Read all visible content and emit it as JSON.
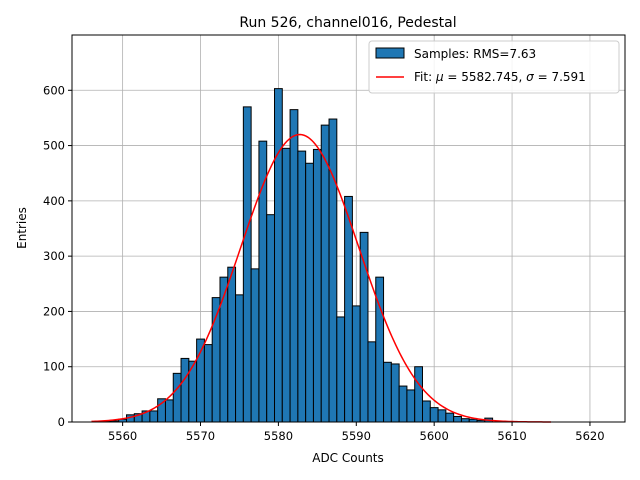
{
  "chart_data": {
    "type": "bar",
    "title": "Run 526, channel016, Pedestal",
    "xlabel": "ADC Counts",
    "ylabel": "Entries",
    "xlim": [
      5553.5,
      5624.5
    ],
    "ylim": [
      0,
      700
    ],
    "xticks": [
      5560,
      5570,
      5580,
      5590,
      5600,
      5610,
      5620
    ],
    "yticks": [
      0,
      100,
      200,
      300,
      400,
      500,
      600
    ],
    "grid": true,
    "legend_placement": "top-right",
    "bin_width": 1,
    "histogram": {
      "name": "Samples: RMS=7.63",
      "color": "#1f77b4",
      "bin_centers": [
        5558,
        5559,
        5560,
        5561,
        5562,
        5563,
        5564,
        5565,
        5566,
        5567,
        5568,
        5569,
        5570,
        5571,
        5572,
        5573,
        5574,
        5575,
        5576,
        5577,
        5578,
        5579,
        5580,
        5581,
        5582,
        5583,
        5584,
        5585,
        5586,
        5587,
        5588,
        5589,
        5590,
        5591,
        5592,
        5593,
        5594,
        5595,
        5596,
        5597,
        5598,
        5599,
        5600,
        5601,
        5602,
        5603,
        5604,
        5605,
        5606,
        5607
      ],
      "counts": [
        1,
        2,
        5,
        13,
        15,
        20,
        20,
        42,
        40,
        88,
        115,
        110,
        150,
        140,
        225,
        262,
        280,
        230,
        570,
        277,
        508,
        375,
        603,
        495,
        565,
        490,
        468,
        493,
        537,
        548,
        190,
        408,
        210,
        343,
        145,
        262,
        108,
        105,
        65,
        58,
        100,
        38,
        26,
        22,
        16,
        10,
        6,
        5,
        3,
        7
      ]
    },
    "fit": {
      "name": "Fit: μ = 5582.745, σ = 7.591",
      "name_prefix": "Fit: ",
      "name_mu": "μ",
      "name_mid": " = 5582.745, ",
      "name_sigma": "σ",
      "name_suffix": " = 7.591",
      "color": "#ff0000",
      "mu": 5582.745,
      "sigma": 7.591,
      "amplitude": 520,
      "x_range": [
        5556,
        5615
      ]
    }
  }
}
